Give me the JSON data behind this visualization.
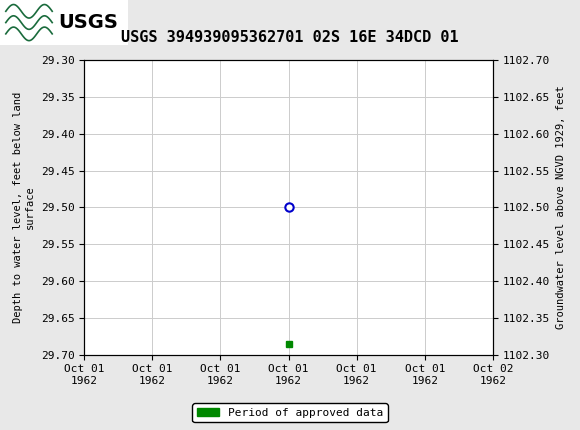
{
  "title": "USGS 394939095362701 02S 16E 34DCD 01",
  "title_fontsize": 11,
  "header_color": "#1a6b3c",
  "logo_bg_color": "#ffffff",
  "ylabel_left": "Depth to water level, feet below land\nsurface",
  "ylabel_right": "Groundwater level above NGVD 1929, feet",
  "ylim_left_top": 29.3,
  "ylim_left_bottom": 29.7,
  "ylim_right_top": 1102.7,
  "ylim_right_bottom": 1102.3,
  "yticks_left": [
    29.3,
    29.35,
    29.4,
    29.45,
    29.5,
    29.55,
    29.6,
    29.65,
    29.7
  ],
  "yticks_right": [
    1102.7,
    1102.65,
    1102.6,
    1102.55,
    1102.5,
    1102.45,
    1102.4,
    1102.35,
    1102.3
  ],
  "xtick_labels": [
    "Oct 01\n1962",
    "Oct 01\n1962",
    "Oct 01\n1962",
    "Oct 01\n1962",
    "Oct 01\n1962",
    "Oct 01\n1962",
    "Oct 02\n1962"
  ],
  "xlim": [
    0,
    6
  ],
  "xtick_positions": [
    0,
    1,
    2,
    3,
    4,
    5,
    6
  ],
  "data_point_x": 3,
  "data_point_y": 29.5,
  "data_point_color": "#0000cc",
  "data_point_markersize": 6,
  "green_marker_x": 3,
  "green_marker_y": 29.686,
  "green_color": "#008800",
  "legend_label": "Period of approved data",
  "grid_color": "#cccccc",
  "background_color": "#e8e8e8",
  "plot_bg_color": "#ffffff",
  "font_family": "monospace",
  "font_size_ticks": 8,
  "font_size_label": 7.5,
  "font_size_legend": 8
}
